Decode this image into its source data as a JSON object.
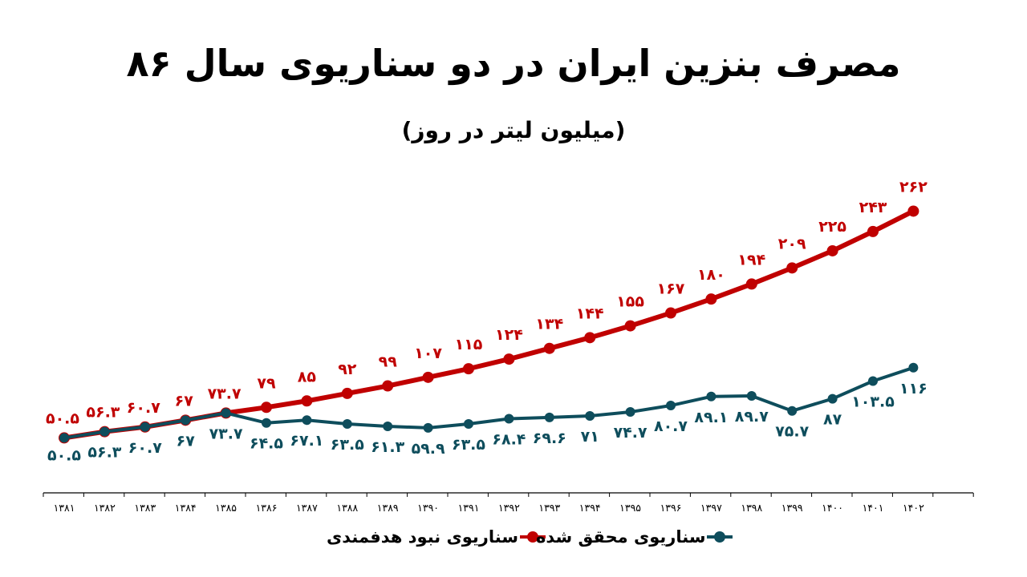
{
  "header": {
    "title": "مصرف بنزین ایران در دو سناریوی سال ۸۶",
    "subtitle": "(میلیون لیتر در روز)"
  },
  "legend": {
    "items": [
      {
        "label": "سناریوی محقق شده",
        "color": "#0E4D5C"
      },
      {
        "label": "سناریوی نبود هدفمندی",
        "color": "#C00000"
      }
    ]
  },
  "colors": {
    "no_targeting": "#C00000",
    "realized": "#0E4D5C",
    "axis": "#000000"
  },
  "chart_data": {
    "type": "line",
    "title": "مصرف بنزین ایران در دو سناریوی سال ۸۶",
    "subtitle": "(میلیون لیتر در روز)",
    "xlabel": "",
    "ylabel": "میلیون لیتر در روز",
    "categories": [
      "۱۳۸۱",
      "۱۳۸۲",
      "۱۳۸۳",
      "۱۳۸۴",
      "۱۳۸۵",
      "۱۳۸۶",
      "۱۳۸۷",
      "۱۳۸۸",
      "۱۳۸۹",
      "۱۳۹۰",
      "۱۳۹۱",
      "۱۳۹۲",
      "۱۳۹۳",
      "۱۳۹۴",
      "۱۳۹۵",
      "۱۳۹۶",
      "۱۳۹۷",
      "۱۳۹۸",
      "۱۳۹۹",
      "۱۴۰۰",
      "۱۴۰۱",
      "۱۴۰۲"
    ],
    "x": [
      1381,
      1382,
      1383,
      1384,
      1385,
      1386,
      1387,
      1388,
      1389,
      1390,
      1391,
      1392,
      1393,
      1394,
      1395,
      1396,
      1397,
      1398,
      1399,
      1400,
      1401,
      1402
    ],
    "series": [
      {
        "name": "سناریوی نبود هدفمندی",
        "color": "#C00000",
        "values": [
          50.5,
          56.3,
          60.7,
          67,
          73.7,
          79,
          85,
          92,
          99,
          107,
          115,
          124,
          134,
          144,
          155,
          167,
          180,
          194,
          209,
          225,
          243,
          262
        ],
        "labels": [
          "۵۰.۵",
          "۵۶.۳",
          "۶۰.۷",
          "۶۷",
          "۷۳.۷",
          "۷۹",
          "۸۵",
          "۹۲",
          "۹۹",
          "۱۰۷",
          "۱۱۵",
          "۱۲۴",
          "۱۳۴",
          "۱۴۴",
          "۱۵۵",
          "۱۶۷",
          "۱۸۰",
          "۱۹۴",
          "۲۰۹",
          "۲۲۵",
          "۲۴۳",
          "۲۶۲"
        ]
      },
      {
        "name": "سناریوی محقق شده",
        "color": "#0E4D5C",
        "values": [
          50.5,
          56.3,
          60.7,
          67,
          73.7,
          64.5,
          67.1,
          63.5,
          61.3,
          59.9,
          63.5,
          68.4,
          69.6,
          71,
          74.7,
          80.7,
          89.1,
          89.7,
          75.7,
          87,
          103.5,
          116
        ],
        "labels": [
          "۵۰.۵",
          "۵۶.۳",
          "۶۰.۷",
          "۶۷",
          "۷۳.۷",
          "۶۴.۵",
          "۶۷.۱",
          "۶۳.۵",
          "۶۱.۳",
          "۵۹.۹",
          "۶۳.۵",
          "۶۸.۴",
          "۶۹.۶",
          "۷۱",
          "۷۴.۷",
          "۸۰.۷",
          "۸۹.۱",
          "۸۹.۷",
          "۷۵.۷",
          "۸۷",
          "۱۰۳.۵",
          "۱۱۶"
        ]
      }
    ],
    "ylim": [
      0,
      280
    ],
    "grid": false,
    "legend_position": "bottom",
    "data_labels": true
  }
}
